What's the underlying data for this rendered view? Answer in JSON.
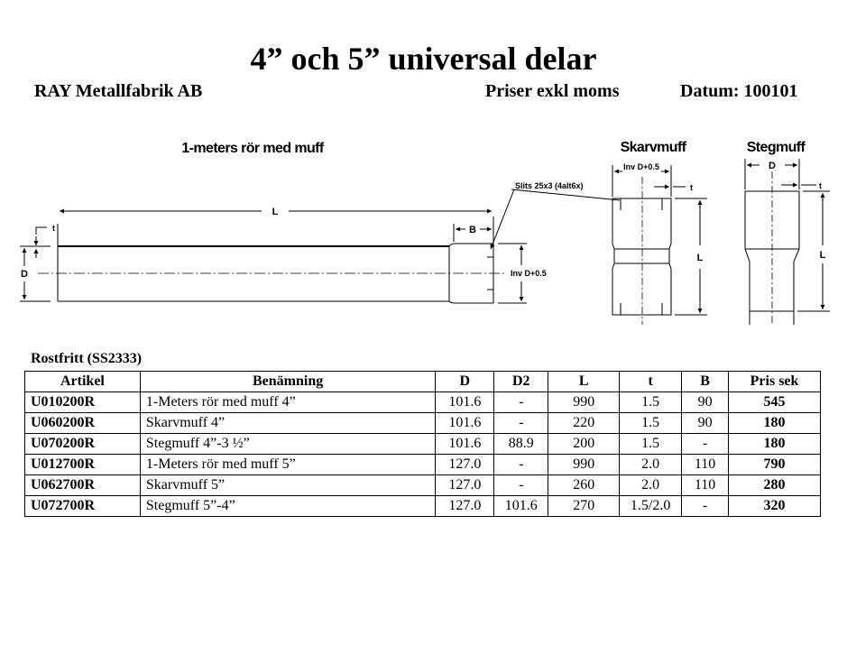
{
  "title": "4” och 5” universal delar",
  "company": "RAY Metallfabrik AB",
  "price_note": "Priser exkl moms",
  "date_label": "Datum: 100101",
  "drawings": {
    "pipe": {
      "title": "1-meters rör med muff",
      "L": "L",
      "B": "B",
      "t": "t",
      "D": "D",
      "inv": "Inv D+0.5",
      "slits": "Slits 25x3 (4alt6x)"
    },
    "skarvmuff": {
      "title": "Skarvmuff",
      "inv": "Inv D+0.5",
      "t": "t",
      "L": "L"
    },
    "stegmuff": {
      "title": "Stegmuff",
      "D": "D",
      "t": "t",
      "L": "L"
    }
  },
  "section_title": "Rostfritt (SS2333)",
  "table": {
    "headers": [
      "Artikel",
      "Benämning",
      "D",
      "D2",
      "L",
      "t",
      "B",
      "Pris sek"
    ],
    "rows": [
      [
        "U010200R",
        "1-Meters rör med muff 4”",
        "101.6",
        "-",
        "990",
        "1.5",
        "90",
        "545"
      ],
      [
        "U060200R",
        "Skarvmuff 4”",
        "101.6",
        "-",
        "220",
        "1.5",
        "90",
        "180"
      ],
      [
        "U070200R",
        "Stegmuff 4”-3 ½”",
        "101.6",
        "88.9",
        "200",
        "1.5",
        "-",
        "180"
      ],
      [
        "U012700R",
        "1-Meters rör med muff 5”",
        "127.0",
        "-",
        "990",
        "2.0",
        "110",
        "790"
      ],
      [
        "U062700R",
        "Skarvmuff 5”",
        "127.0",
        "-",
        "260",
        "2.0",
        "110",
        "280"
      ],
      [
        "U072700R",
        "Stegmuff 5”-4”",
        "127.0",
        "101.6",
        "270",
        "1.5/2.0",
        "-",
        "320"
      ]
    ]
  }
}
